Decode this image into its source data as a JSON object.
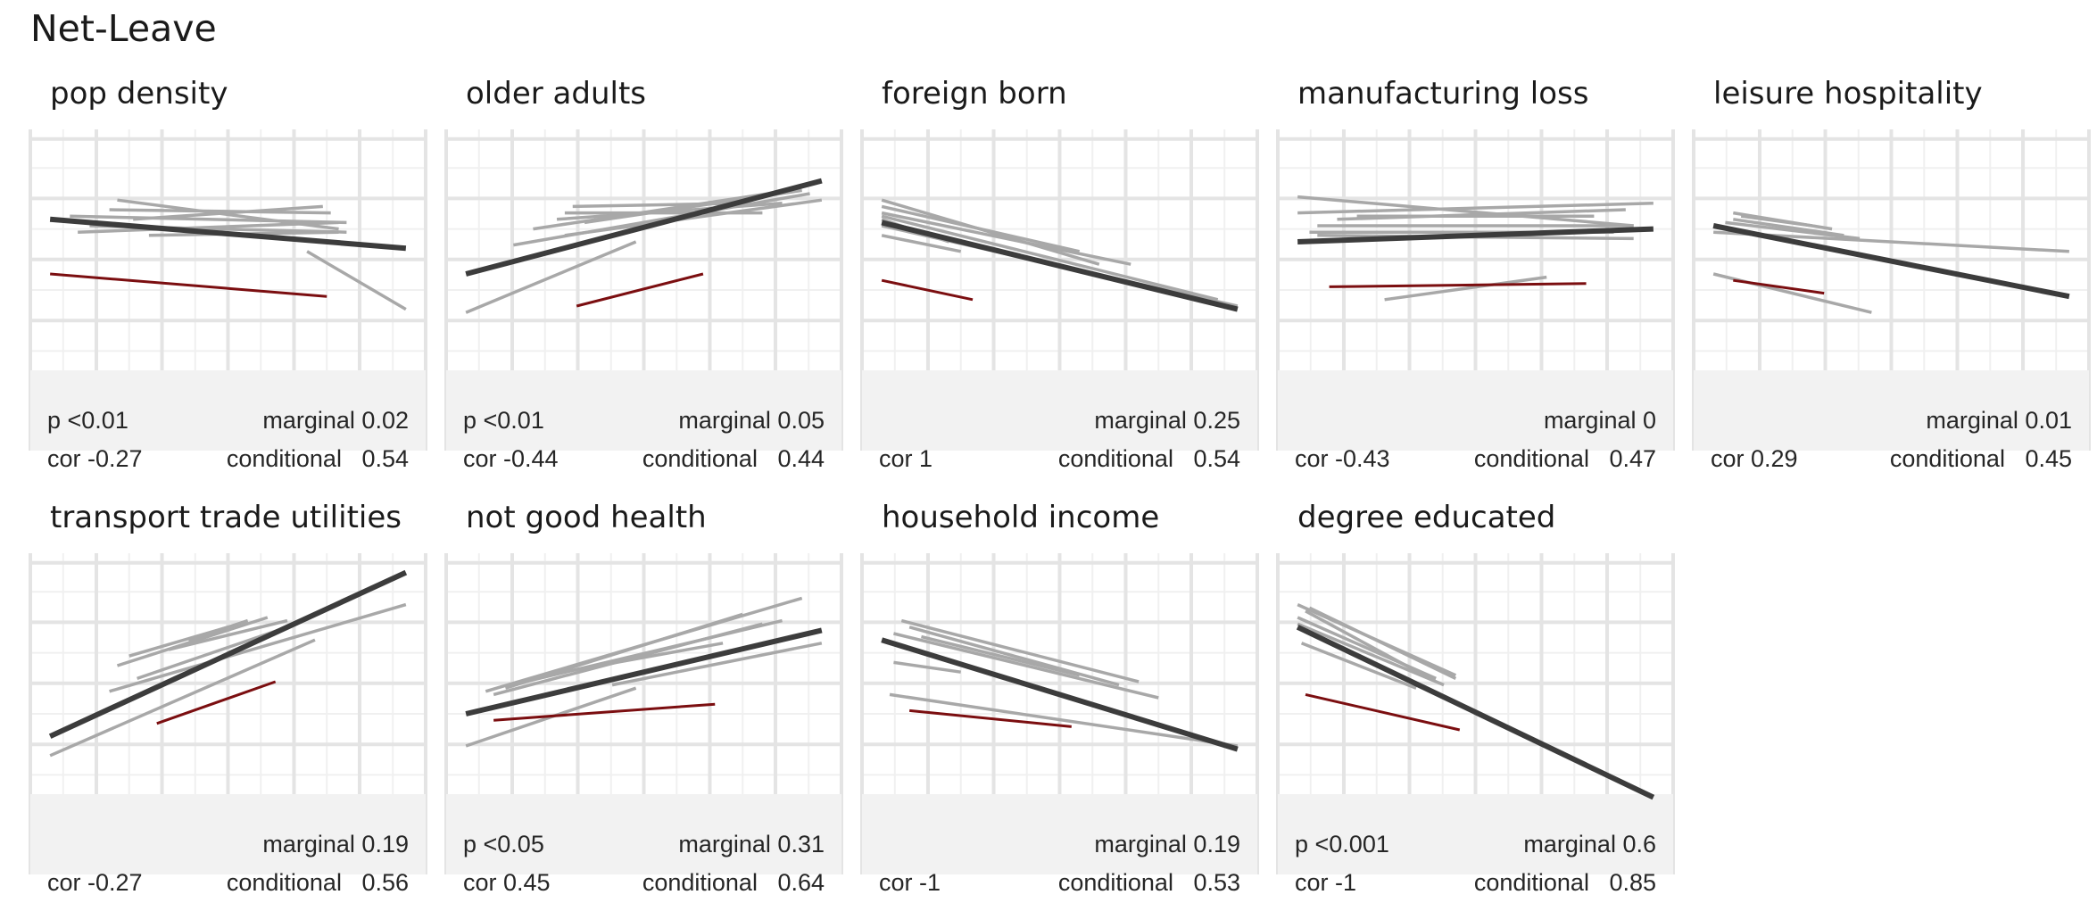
{
  "chart_data": {
    "type": "line",
    "title": "Net-Leave",
    "grid": true,
    "panels": [
      {
        "name": "pop density",
        "p": "p <0.01",
        "cor": "cor -0.27",
        "marginal": "marginal 0.02",
        "conditional": "conditional   0.54",
        "fit": [
          [
            0.05,
            0.72
          ],
          [
            0.95,
            0.63
          ]
        ],
        "highlight": [
          [
            0.05,
            0.55
          ],
          [
            0.75,
            0.48
          ]
        ],
        "groups": [
          [
            [
              0.1,
              0.73
            ],
            [
              0.8,
              0.71
            ]
          ],
          [
            [
              0.22,
              0.78
            ],
            [
              0.78,
              0.69
            ]
          ],
          [
            [
              0.12,
              0.68
            ],
            [
              0.78,
              0.71
            ]
          ],
          [
            [
              0.15,
              0.7
            ],
            [
              0.8,
              0.68
            ]
          ],
          [
            [
              0.3,
              0.67
            ],
            [
              0.78,
              0.68
            ]
          ],
          [
            [
              0.2,
              0.75
            ],
            [
              0.76,
              0.74
            ]
          ],
          [
            [
              0.26,
              0.72
            ],
            [
              0.74,
              0.76
            ]
          ],
          [
            [
              0.7,
              0.62
            ],
            [
              0.95,
              0.44
            ]
          ]
        ]
      },
      {
        "name": "older adults",
        "p": "p <0.01",
        "cor": "cor -0.44",
        "marginal": "marginal 0.05",
        "conditional": "conditional   0.44",
        "fit": [
          [
            0.05,
            0.55
          ],
          [
            0.95,
            0.84
          ]
        ],
        "highlight": [
          [
            0.33,
            0.45
          ],
          [
            0.65,
            0.55
          ]
        ],
        "groups": [
          [
            [
              0.05,
              0.43
            ],
            [
              0.48,
              0.65
            ]
          ],
          [
            [
              0.17,
              0.64
            ],
            [
              0.92,
              0.8
            ]
          ],
          [
            [
              0.22,
              0.69
            ],
            [
              0.87,
              0.81
            ]
          ],
          [
            [
              0.3,
              0.67
            ],
            [
              0.95,
              0.78
            ]
          ],
          [
            [
              0.28,
              0.72
            ],
            [
              0.85,
              0.77
            ]
          ],
          [
            [
              0.32,
              0.76
            ],
            [
              0.75,
              0.77
            ]
          ],
          [
            [
              0.3,
              0.74
            ],
            [
              0.8,
              0.74
            ]
          ],
          [
            [
              0.35,
              0.71
            ],
            [
              0.9,
              0.81
            ]
          ]
        ]
      },
      {
        "name": "foreign born",
        "p": "",
        "cor": "cor 1",
        "marginal": "marginal 0.25",
        "conditional": "conditional   0.54",
        "fit": [
          [
            0.05,
            0.71
          ],
          [
            0.95,
            0.44
          ]
        ],
        "highlight": [
          [
            0.05,
            0.53
          ],
          [
            0.28,
            0.47
          ]
        ],
        "groups": [
          [
            [
              0.05,
              0.78
            ],
            [
              0.6,
              0.58
            ]
          ],
          [
            [
              0.05,
              0.76
            ],
            [
              0.55,
              0.62
            ]
          ],
          [
            [
              0.05,
              0.74
            ],
            [
              0.68,
              0.58
            ]
          ],
          [
            [
              0.05,
              0.67
            ],
            [
              0.25,
              0.62
            ]
          ],
          [
            [
              0.05,
              0.7
            ],
            [
              0.95,
              0.45
            ]
          ],
          [
            [
              0.05,
              0.73
            ],
            [
              0.9,
              0.47
            ]
          ],
          [
            [
              0.05,
              0.72
            ],
            [
              0.22,
              0.65
            ]
          ]
        ]
      },
      {
        "name": "manufacturing loss",
        "p": "",
        "cor": "cor -0.43",
        "marginal": "marginal 0",
        "conditional": "conditional   0.47",
        "fit": [
          [
            0.05,
            0.65
          ],
          [
            0.95,
            0.69
          ]
        ],
        "highlight": [
          [
            0.13,
            0.51
          ],
          [
            0.78,
            0.52
          ]
        ],
        "groups": [
          [
            [
              0.05,
              0.79
            ],
            [
              0.9,
              0.7
            ]
          ],
          [
            [
              0.05,
              0.74
            ],
            [
              0.95,
              0.77
            ]
          ],
          [
            [
              0.1,
              0.7
            ],
            [
              0.9,
              0.7
            ]
          ],
          [
            [
              0.08,
              0.68
            ],
            [
              0.85,
              0.68
            ]
          ],
          [
            [
              0.15,
              0.72
            ],
            [
              0.88,
              0.75
            ]
          ],
          [
            [
              0.1,
              0.67
            ],
            [
              0.9,
              0.66
            ]
          ],
          [
            [
              0.2,
              0.73
            ],
            [
              0.8,
              0.73
            ]
          ],
          [
            [
              0.27,
              0.47
            ],
            [
              0.68,
              0.54
            ]
          ]
        ]
      },
      {
        "name": "leisure hospitality",
        "p": "",
        "cor": "cor 0.29",
        "marginal": "marginal 0.01",
        "conditional": "conditional   0.45",
        "fit": [
          [
            0.05,
            0.7
          ],
          [
            0.95,
            0.48
          ]
        ],
        "highlight": [
          [
            0.1,
            0.53
          ],
          [
            0.33,
            0.49
          ]
        ],
        "groups": [
          [
            [
              0.05,
              0.55
            ],
            [
              0.45,
              0.43
            ]
          ],
          [
            [
              0.1,
              0.74
            ],
            [
              0.35,
              0.69
            ]
          ],
          [
            [
              0.12,
              0.73
            ],
            [
              0.3,
              0.7
            ]
          ],
          [
            [
              0.08,
              0.71
            ],
            [
              0.42,
              0.66
            ]
          ],
          [
            [
              0.05,
              0.68
            ],
            [
              0.95,
              0.62
            ]
          ],
          [
            [
              0.1,
              0.72
            ],
            [
              0.38,
              0.67
            ]
          ]
        ]
      },
      {
        "name": "transport trade utilities",
        "p": "",
        "cor": "cor -0.27",
        "marginal": "marginal 0.19",
        "conditional": "conditional   0.56",
        "fit": [
          [
            0.05,
            0.43
          ],
          [
            0.95,
            0.94
          ]
        ],
        "highlight": [
          [
            0.32,
            0.47
          ],
          [
            0.62,
            0.6
          ]
        ],
        "groups": [
          [
            [
              0.05,
              0.37
            ],
            [
              0.72,
              0.73
            ]
          ],
          [
            [
              0.27,
              0.61
            ],
            [
              0.65,
              0.77
            ]
          ],
          [
            [
              0.22,
              0.65
            ],
            [
              0.6,
              0.8
            ]
          ],
          [
            [
              0.25,
              0.68
            ],
            [
              0.5,
              0.77
            ]
          ],
          [
            [
              0.4,
              0.73
            ],
            [
              0.55,
              0.79
            ]
          ],
          [
            [
              0.35,
              0.7
            ],
            [
              0.65,
              0.79
            ]
          ],
          [
            [
              0.2,
              0.57
            ],
            [
              0.95,
              0.84
            ]
          ]
        ]
      },
      {
        "name": "not good health",
        "p": "p <0.05",
        "cor": "cor 0.45",
        "marginal": "marginal 0.31",
        "conditional": "conditional   0.64",
        "fit": [
          [
            0.05,
            0.5
          ],
          [
            0.95,
            0.76
          ]
        ],
        "highlight": [
          [
            0.12,
            0.48
          ],
          [
            0.68,
            0.53
          ]
        ],
        "groups": [
          [
            [
              0.05,
              0.4
            ],
            [
              0.48,
              0.58
            ]
          ],
          [
            [
              0.1,
              0.57
            ],
            [
              0.9,
              0.86
            ]
          ],
          [
            [
              0.15,
              0.58
            ],
            [
              0.75,
              0.81
            ]
          ],
          [
            [
              0.12,
              0.56
            ],
            [
              0.8,
              0.78
            ]
          ],
          [
            [
              0.2,
              0.6
            ],
            [
              0.85,
              0.79
            ]
          ],
          [
            [
              0.42,
              0.59
            ],
            [
              0.95,
              0.72
            ]
          ],
          [
            [
              0.25,
              0.62
            ],
            [
              0.7,
              0.72
            ]
          ]
        ]
      },
      {
        "name": "household income",
        "p": "",
        "cor": "cor -1",
        "marginal": "marginal 0.19",
        "conditional": "conditional   0.53",
        "fit": [
          [
            0.05,
            0.73
          ],
          [
            0.95,
            0.39
          ]
        ],
        "highlight": [
          [
            0.12,
            0.51
          ],
          [
            0.53,
            0.46
          ]
        ],
        "groups": [
          [
            [
              0.1,
              0.79
            ],
            [
              0.7,
              0.6
            ]
          ],
          [
            [
              0.12,
              0.77
            ],
            [
              0.65,
              0.59
            ]
          ],
          [
            [
              0.08,
              0.75
            ],
            [
              0.75,
              0.55
            ]
          ],
          [
            [
              0.07,
              0.56
            ],
            [
              0.95,
              0.4
            ]
          ],
          [
            [
              0.08,
              0.66
            ],
            [
              0.25,
              0.63
            ]
          ],
          [
            [
              0.15,
              0.74
            ],
            [
              0.55,
              0.62
            ]
          ]
        ]
      },
      {
        "name": "degree educated",
        "p": "p <0.001",
        "cor": "cor -1",
        "marginal": "marginal 0.6",
        "conditional": "conditional   0.85",
        "fit": [
          [
            0.05,
            0.77
          ],
          [
            0.95,
            0.24
          ]
        ],
        "highlight": [
          [
            0.07,
            0.56
          ],
          [
            0.46,
            0.45
          ]
        ],
        "groups": [
          [
            [
              0.05,
              0.84
            ],
            [
              0.45,
              0.62
            ]
          ],
          [
            [
              0.07,
              0.82
            ],
            [
              0.4,
              0.6
            ]
          ],
          [
            [
              0.05,
              0.8
            ],
            [
              0.4,
              0.61
            ]
          ],
          [
            [
              0.06,
              0.72
            ],
            [
              0.35,
              0.58
            ]
          ],
          [
            [
              0.08,
              0.83
            ],
            [
              0.45,
              0.61
            ]
          ],
          [
            [
              0.05,
              0.78
            ],
            [
              0.42,
              0.59
            ]
          ]
        ]
      }
    ]
  },
  "colors": {
    "fit": "#3c3c3c",
    "group": "#a8a8a8",
    "highlight": "#7b0e10",
    "grid_major": "#e4e4e4",
    "grid_minor": "#f0f0f0",
    "stat_box": "#f2f2f2"
  }
}
